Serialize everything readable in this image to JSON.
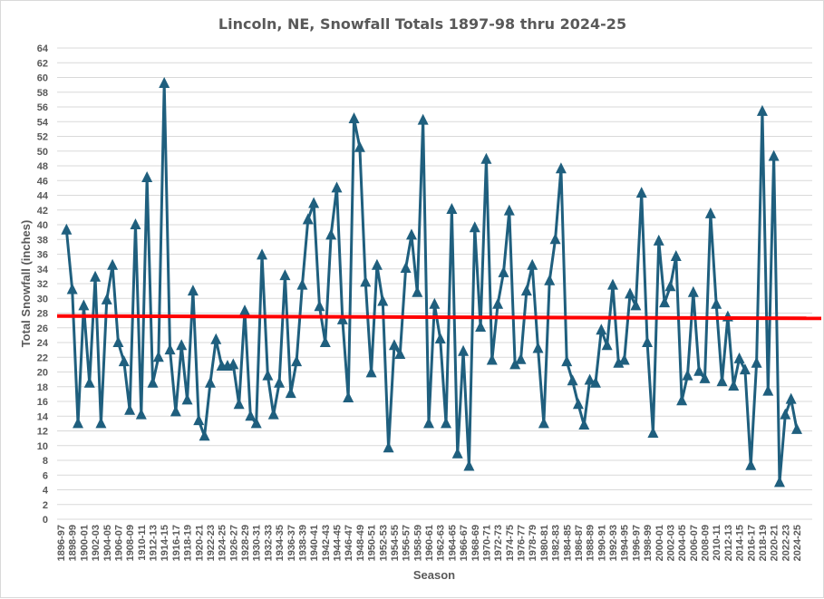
{
  "chart_data": {
    "type": "line",
    "title": "Lincoln, NE, Snowfall Totals 1897-98 thru 2024-25",
    "xlabel": "Season",
    "ylabel": "Total Snowfall (inches)",
    "ylim": [
      0,
      64
    ],
    "y_ticks": [
      0,
      2,
      4,
      6,
      8,
      10,
      12,
      14,
      16,
      18,
      20,
      22,
      24,
      26,
      28,
      30,
      32,
      34,
      36,
      38,
      40,
      42,
      44,
      46,
      48,
      50,
      52,
      54,
      56,
      58,
      60,
      62,
      64
    ],
    "grid": "horizontal",
    "legend": "none",
    "x_tick_labels": [
      "1896-97",
      "1898-99",
      "1900-01",
      "1902-03",
      "1904-05",
      "1906-07",
      "1908-09",
      "1910-11",
      "1912-13",
      "1914-15",
      "1916-17",
      "1918-19",
      "1920-21",
      "1922-23",
      "1924-25",
      "1926-27",
      "1928-29",
      "1930-31",
      "1932-33",
      "1934-35",
      "1936-37",
      "1938-39",
      "1940-41",
      "1942-43",
      "1944-45",
      "1946-47",
      "1948-49",
      "1950-51",
      "1952-53",
      "1954-55",
      "1956-57",
      "1958-59",
      "1960-61",
      "1962-63",
      "1964-65",
      "1966-67",
      "1968-69",
      "1970-71",
      "1972-73",
      "1974-75",
      "1976-77",
      "1978-79",
      "1980-81",
      "1982-83",
      "1984-85",
      "1986-87",
      "1988-89",
      "1990-91",
      "1992-93",
      "1994-95",
      "1996-97",
      "1998-99",
      "2000-01",
      "2002-03",
      "2004-05",
      "2006-07",
      "2008-09",
      "2010-11",
      "2012-13",
      "2014-15",
      "2016-17",
      "2018-19",
      "2020-21",
      "2022-23",
      "2024-25"
    ],
    "series": [
      {
        "marker": "triangle",
        "color": "#1f5f7e",
        "values": [
          null,
          39.3,
          31.2,
          13.0,
          29.0,
          18.5,
          32.9,
          13.0,
          29.8,
          34.5,
          24.0,
          21.4,
          14.8,
          40.0,
          14.2,
          46.4,
          18.5,
          22.0,
          59.2,
          23.0,
          14.6,
          23.6,
          16.2,
          31.0,
          13.4,
          11.3,
          18.5,
          24.4,
          20.8,
          20.8,
          21.0,
          15.6,
          28.3,
          14.0,
          13.0,
          35.9,
          19.5,
          14.2,
          18.5,
          33.1,
          17.1,
          21.4,
          31.8,
          40.7,
          42.9,
          28.9,
          24.0,
          38.6,
          45.0,
          27.1,
          16.5,
          54.4,
          50.5,
          32.2,
          19.9,
          34.5,
          29.6,
          9.7,
          23.6,
          22.4,
          34.1,
          38.6,
          30.8,
          54.2,
          13.0,
          29.2,
          24.5,
          13.0,
          42.1,
          8.9,
          22.8,
          7.2,
          39.6,
          26.1,
          48.9,
          21.6,
          29.2,
          33.5,
          41.9,
          21.0,
          21.7,
          31.0,
          34.5,
          23.2,
          13.0,
          32.4,
          38.0,
          47.6,
          21.4,
          18.8,
          15.6,
          12.8,
          18.9,
          18.5,
          25.7,
          23.6,
          31.8,
          21.2,
          21.6,
          30.6,
          29.0,
          44.3,
          24.0,
          11.7,
          37.8,
          29.4,
          31.6,
          35.7,
          16.1,
          19.5,
          30.8,
          20.1,
          19.1,
          41.5,
          29.2,
          18.7,
          27.5,
          18.1,
          21.8,
          20.3,
          7.3,
          21.2,
          55.4,
          17.4,
          49.3,
          5.0,
          14.2,
          16.3,
          12.2
        ]
      }
    ],
    "trendline": {
      "type": "linear",
      "color": "#ff0000",
      "start_value": 27.6,
      "end_value": 27.3
    }
  }
}
